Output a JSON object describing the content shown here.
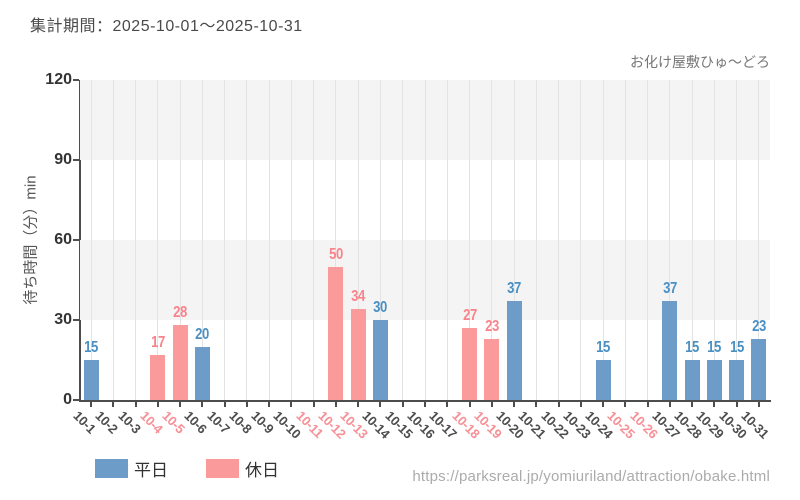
{
  "header": {
    "title": "集計期間：2025-10-01〜2025-10-31",
    "attraction_name": "お化け屋敷ひゅ〜どろ"
  },
  "footer": {
    "source_url": "https://parksreal.jp/yomiuriland/attraction/obake.html"
  },
  "colors": {
    "bar_weekday": "#6d9cc8",
    "bar_holiday": "#fa9a9a",
    "value_label_weekday": "#4a90c4",
    "value_label_holiday": "#f8838a",
    "xtick_weekday": "#4d4d4d",
    "xtick_holiday": "#f78f96",
    "band_gray": "#f4f4f4",
    "gridline": "#e3e3e3",
    "axis": "#4d4d4d"
  },
  "chart_data": {
    "type": "bar",
    "title": "集計期間：2025-10-01〜2025-10-31",
    "annotation": "お化け屋敷ひゅ〜どろ",
    "ylabel": "待ち時間（分）min",
    "xlabel": "",
    "ylim": [
      0,
      120
    ],
    "yticks": [
      0,
      30,
      60,
      90,
      120
    ],
    "grid": "vertical-category-lines with alternating horizontal gray bands",
    "legend_position": "bottom-left",
    "legend": [
      {
        "name": "平日",
        "color": "#6d9cc8"
      },
      {
        "name": "休日",
        "color": "#fa9a9a"
      }
    ],
    "days": [
      {
        "date": "10-1",
        "value": 15,
        "type": "weekday"
      },
      {
        "date": "10-2",
        "value": null,
        "type": "weekday"
      },
      {
        "date": "10-3",
        "value": null,
        "type": "weekday"
      },
      {
        "date": "10-4",
        "value": 17,
        "type": "holiday"
      },
      {
        "date": "10-5",
        "value": 28,
        "type": "holiday"
      },
      {
        "date": "10-6",
        "value": 20,
        "type": "weekday"
      },
      {
        "date": "10-7",
        "value": null,
        "type": "weekday"
      },
      {
        "date": "10-8",
        "value": null,
        "type": "weekday"
      },
      {
        "date": "10-9",
        "value": null,
        "type": "weekday"
      },
      {
        "date": "10-10",
        "value": null,
        "type": "weekday"
      },
      {
        "date": "10-11",
        "value": null,
        "type": "holiday"
      },
      {
        "date": "10-12",
        "value": 50,
        "type": "holiday"
      },
      {
        "date": "10-13",
        "value": 34,
        "type": "holiday"
      },
      {
        "date": "10-14",
        "value": 30,
        "type": "weekday"
      },
      {
        "date": "10-15",
        "value": null,
        "type": "weekday"
      },
      {
        "date": "10-16",
        "value": null,
        "type": "weekday"
      },
      {
        "date": "10-17",
        "value": null,
        "type": "weekday"
      },
      {
        "date": "10-18",
        "value": 27,
        "type": "holiday"
      },
      {
        "date": "10-19",
        "value": 23,
        "type": "holiday"
      },
      {
        "date": "10-20",
        "value": 37,
        "type": "weekday"
      },
      {
        "date": "10-21",
        "value": null,
        "type": "weekday"
      },
      {
        "date": "10-22",
        "value": null,
        "type": "weekday"
      },
      {
        "date": "10-23",
        "value": null,
        "type": "weekday"
      },
      {
        "date": "10-24",
        "value": 15,
        "type": "weekday"
      },
      {
        "date": "10-25",
        "value": null,
        "type": "holiday"
      },
      {
        "date": "10-26",
        "value": null,
        "type": "holiday"
      },
      {
        "date": "10-27",
        "value": 37,
        "type": "weekday"
      },
      {
        "date": "10-28",
        "value": 15,
        "type": "weekday"
      },
      {
        "date": "10-29",
        "value": 15,
        "type": "weekday"
      },
      {
        "date": "10-30",
        "value": 15,
        "type": "weekday"
      },
      {
        "date": "10-31",
        "value": 23,
        "type": "weekday"
      }
    ]
  }
}
